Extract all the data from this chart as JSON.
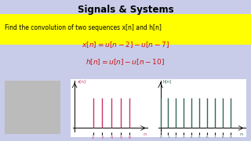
{
  "title": "Signals & Systems",
  "subtitle": "Find the convolution of two sequences x[n] and h[n]",
  "bg_color": "#c8cce8",
  "yellow_bg": "#ffff00",
  "title_color": "#000000",
  "eq_color": "#cc1111",
  "subtitle_color": "#000000",
  "x_signal_n": [
    2,
    3,
    4,
    5,
    6
  ],
  "h_signal_n": [
    0,
    1,
    2,
    3,
    4,
    5,
    6,
    7,
    8,
    9
  ],
  "x_color": "#cc3366",
  "h_color": "#336655",
  "panel_bg": "#ffffff",
  "title_fontsize": 8.5,
  "subtitle_fontsize": 5.5,
  "eq_fontsize": 6.5
}
